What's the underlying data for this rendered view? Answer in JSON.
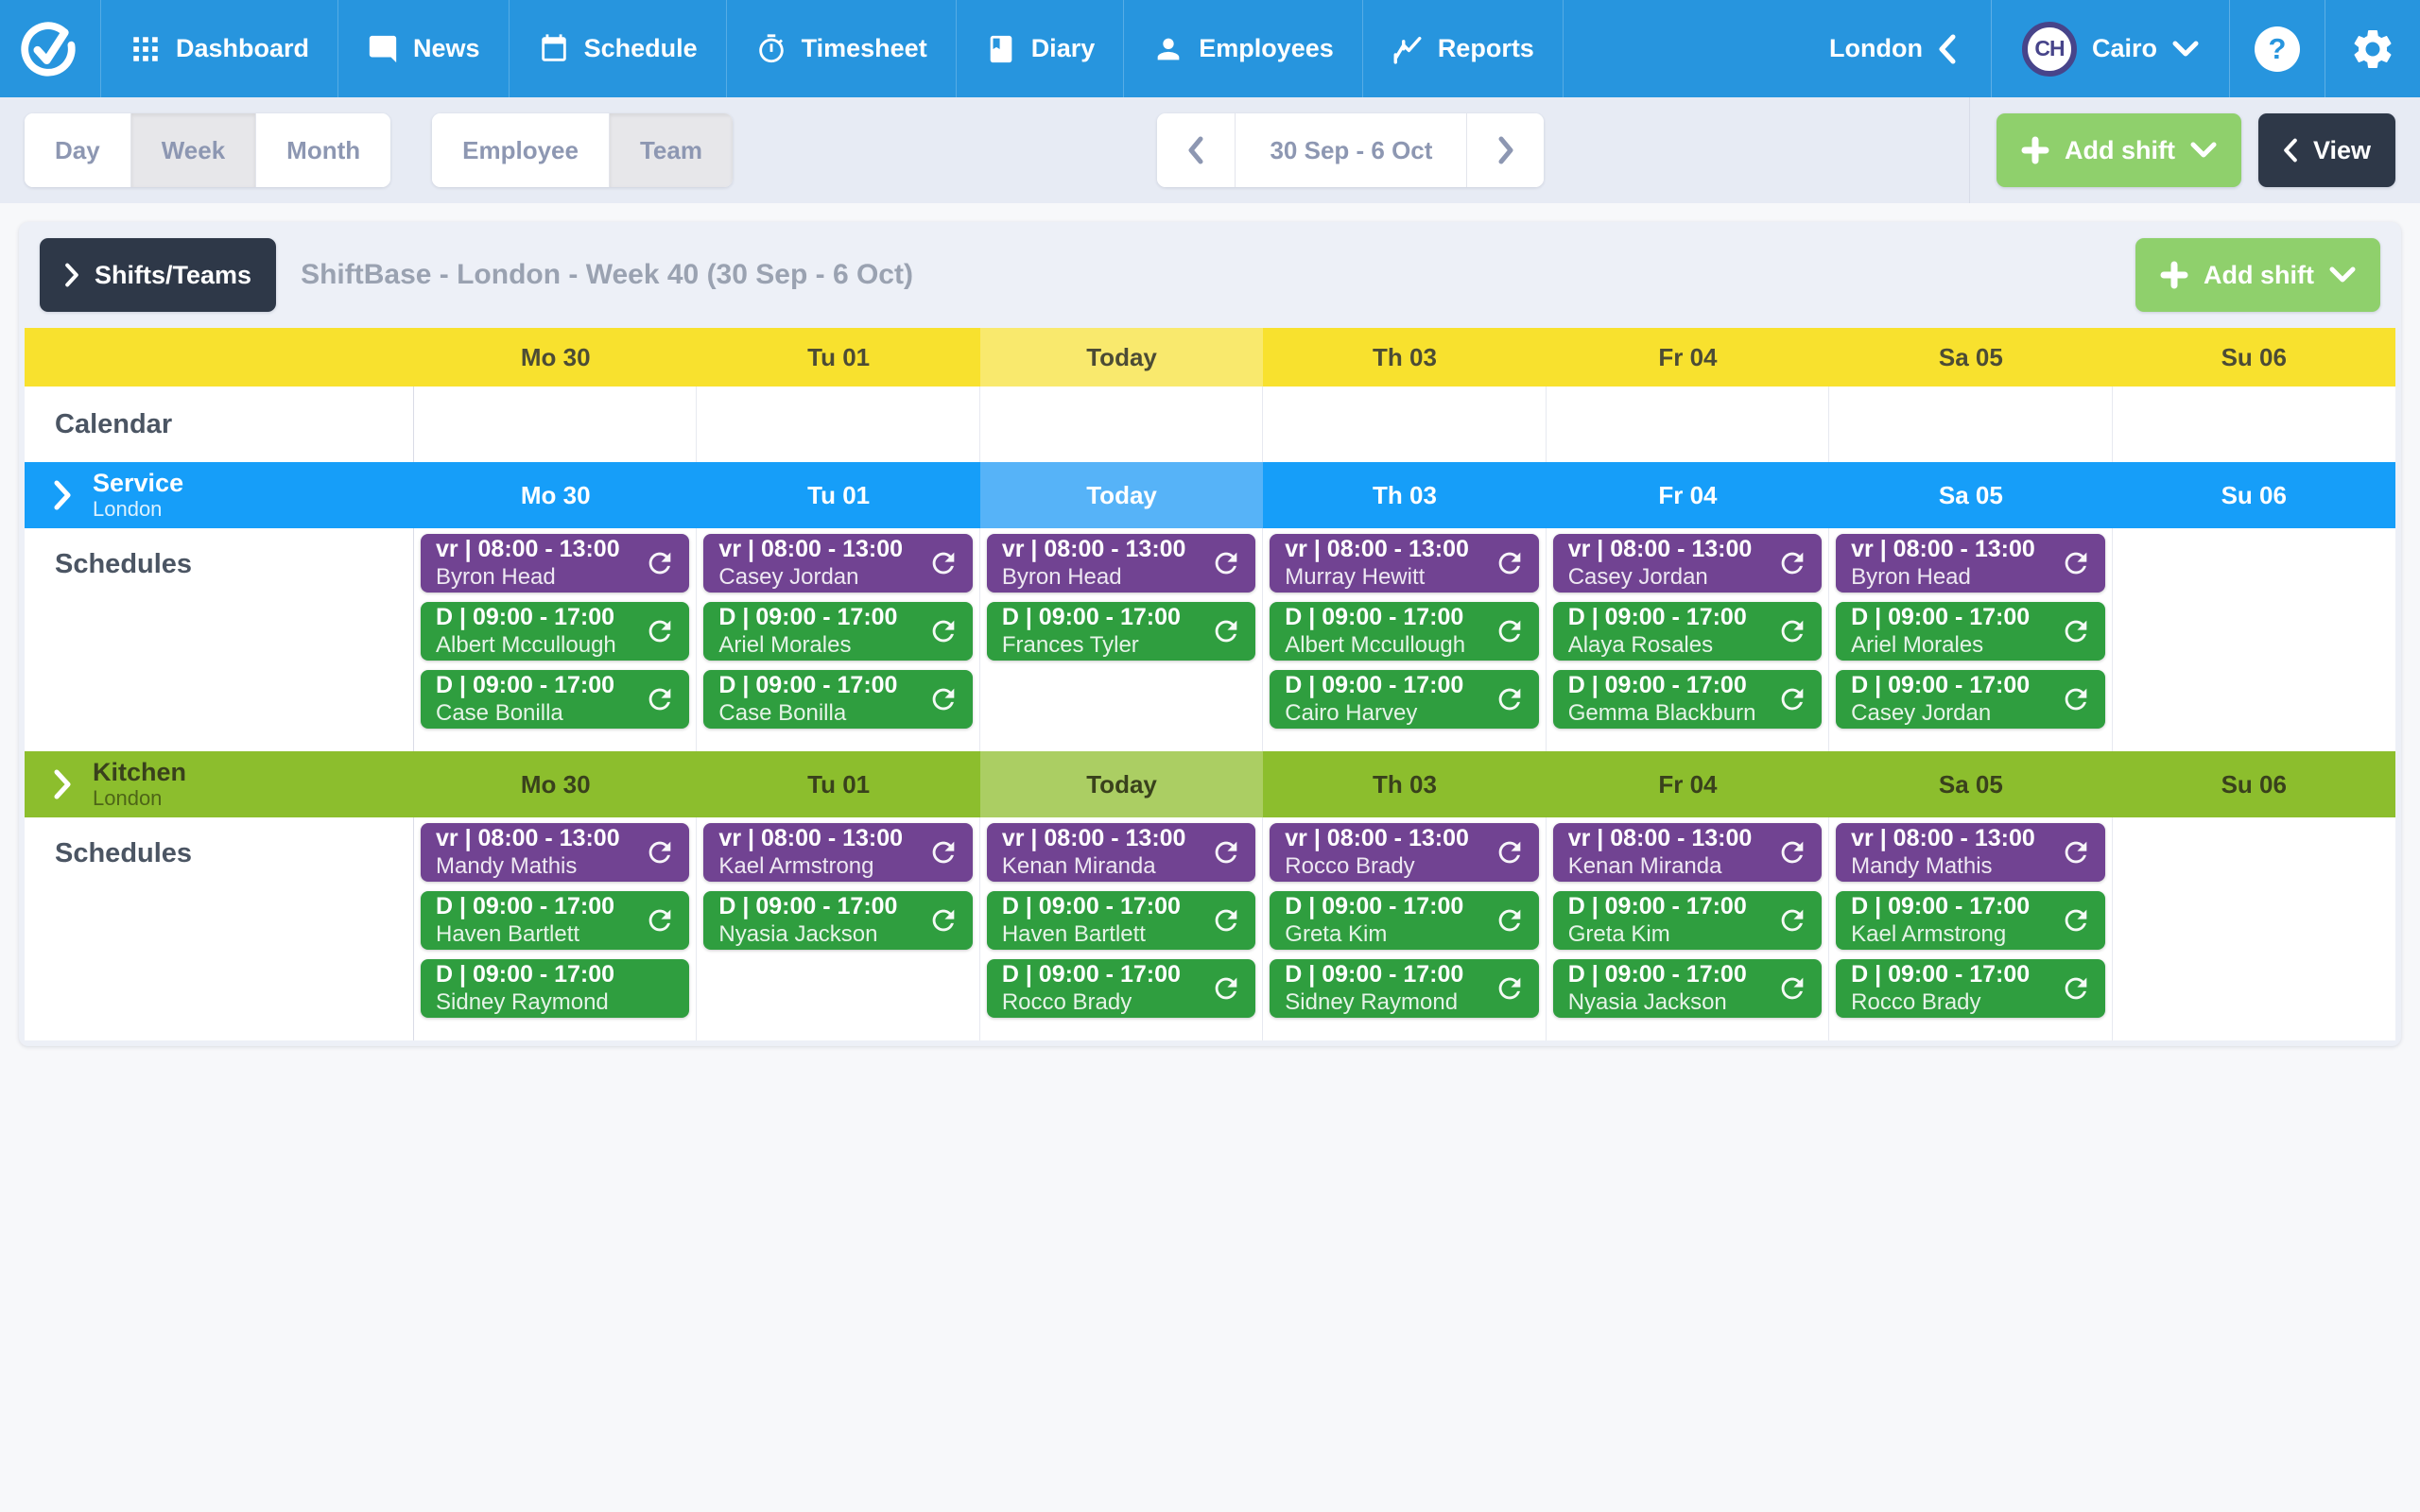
{
  "nav": {
    "items": [
      {
        "label": "Dashboard",
        "icon": "grid-icon"
      },
      {
        "label": "News",
        "icon": "news-icon"
      },
      {
        "label": "Schedule",
        "icon": "calendar-icon"
      },
      {
        "label": "Timesheet",
        "icon": "stopwatch-icon"
      },
      {
        "label": "Diary",
        "icon": "book-icon"
      },
      {
        "label": "Employees",
        "icon": "person-icon"
      },
      {
        "label": "Reports",
        "icon": "chart-icon"
      }
    ],
    "location": "London",
    "user": {
      "initials": "CH",
      "name": "Cairo"
    }
  },
  "toolbar": {
    "view_modes": [
      "Day",
      "Week",
      "Month"
    ],
    "view_mode_selected": "Week",
    "group_modes": [
      "Employee",
      "Team"
    ],
    "group_mode_selected": "Team",
    "date_range": "30 Sep - 6 Oct",
    "add_shift_label": "Add shift",
    "view_label": "View"
  },
  "panel": {
    "shifts_teams_label": "Shifts/Teams",
    "title": "ShiftBase - London - Week 40 (30 Sep - 6 Oct)",
    "add_shift_label": "Add shift",
    "calendar_label": "Calendar",
    "schedules_label": "Schedules",
    "days": [
      "Mo 30",
      "Tu 01",
      "Today",
      "Th 03",
      "Fr 04",
      "Sa 05",
      "Su 06"
    ],
    "today_index": 2,
    "sections": [
      {
        "name": "Service",
        "location": "London",
        "theme": "blue",
        "rows": [
          {
            "shift_code": "vr",
            "time": "08:00 - 13:00",
            "variant": "purple",
            "cells": [
              {
                "name": "Byron Head",
                "refresh": true
              },
              {
                "name": "Casey Jordan",
                "refresh": true
              },
              {
                "name": "Byron Head",
                "refresh": true
              },
              {
                "name": "Murray Hewitt",
                "refresh": true
              },
              {
                "name": "Casey Jordan",
                "refresh": true
              },
              {
                "name": "Byron Head",
                "refresh": true
              },
              null
            ]
          },
          {
            "shift_code": "D",
            "time": "09:00 - 17:00",
            "variant": "green",
            "cells": [
              {
                "name": "Albert Mccullough",
                "refresh": true
              },
              {
                "name": "Ariel Morales",
                "refresh": true
              },
              {
                "name": "Frances Tyler",
                "refresh": true
              },
              {
                "name": "Albert Mccullough",
                "refresh": true
              },
              {
                "name": "Alaya Rosales",
                "refresh": true
              },
              {
                "name": "Ariel Morales",
                "refresh": true
              },
              null
            ]
          },
          {
            "shift_code": "D",
            "time": "09:00 - 17:00",
            "variant": "green",
            "cells": [
              {
                "name": "Case Bonilla",
                "refresh": true
              },
              {
                "name": "Case Bonilla",
                "refresh": true
              },
              null,
              {
                "name": "Cairo Harvey",
                "refresh": true
              },
              {
                "name": "Gemma Blackburn",
                "refresh": true
              },
              {
                "name": "Casey Jordan",
                "refresh": true
              },
              null
            ]
          }
        ]
      },
      {
        "name": "Kitchen",
        "location": "London",
        "theme": "olive",
        "rows": [
          {
            "shift_code": "vr",
            "time": "08:00 - 13:00",
            "variant": "purple",
            "cells": [
              {
                "name": "Mandy Mathis",
                "refresh": true
              },
              {
                "name": "Kael Armstrong",
                "refresh": true
              },
              {
                "name": "Kenan Miranda",
                "refresh": true
              },
              {
                "name": "Rocco Brady",
                "refresh": true
              },
              {
                "name": "Kenan Miranda",
                "refresh": true
              },
              {
                "name": "Mandy Mathis",
                "refresh": true
              },
              null
            ]
          },
          {
            "shift_code": "D",
            "time": "09:00 - 17:00",
            "variant": "green",
            "cells": [
              {
                "name": "Haven Bartlett",
                "refresh": true
              },
              {
                "name": "Nyasia Jackson",
                "refresh": true
              },
              {
                "name": "Haven Bartlett",
                "refresh": true
              },
              {
                "name": "Greta Kim",
                "refresh": true
              },
              {
                "name": "Greta Kim",
                "refresh": true
              },
              {
                "name": "Kael Armstrong",
                "refresh": true
              },
              null
            ]
          },
          {
            "shift_code": "D",
            "time": "09:00 - 17:00",
            "variant": "green",
            "cells": [
              {
                "name": "Sidney Raymond",
                "refresh": false
              },
              null,
              {
                "name": "Rocco Brady",
                "refresh": true
              },
              {
                "name": "Sidney Raymond",
                "refresh": true
              },
              {
                "name": "Nyasia Jackson",
                "refresh": true
              },
              {
                "name": "Rocco Brady",
                "refresh": true
              },
              null
            ]
          }
        ]
      }
    ]
  },
  "colors": {
    "nav_blue": "#2795de",
    "service_blue": "#169ef9",
    "service_blue_today": "#56b3f8",
    "kitchen_olive": "#8cbe2d",
    "kitchen_olive_today": "#abce63",
    "header_yellow": "#f8e12e",
    "header_yellow_today": "#f9e96d",
    "chip_purple": "#714392",
    "chip_green": "#2f9e3f",
    "dark_button": "#2e3848",
    "add_shift_green": "#8fd06c"
  }
}
